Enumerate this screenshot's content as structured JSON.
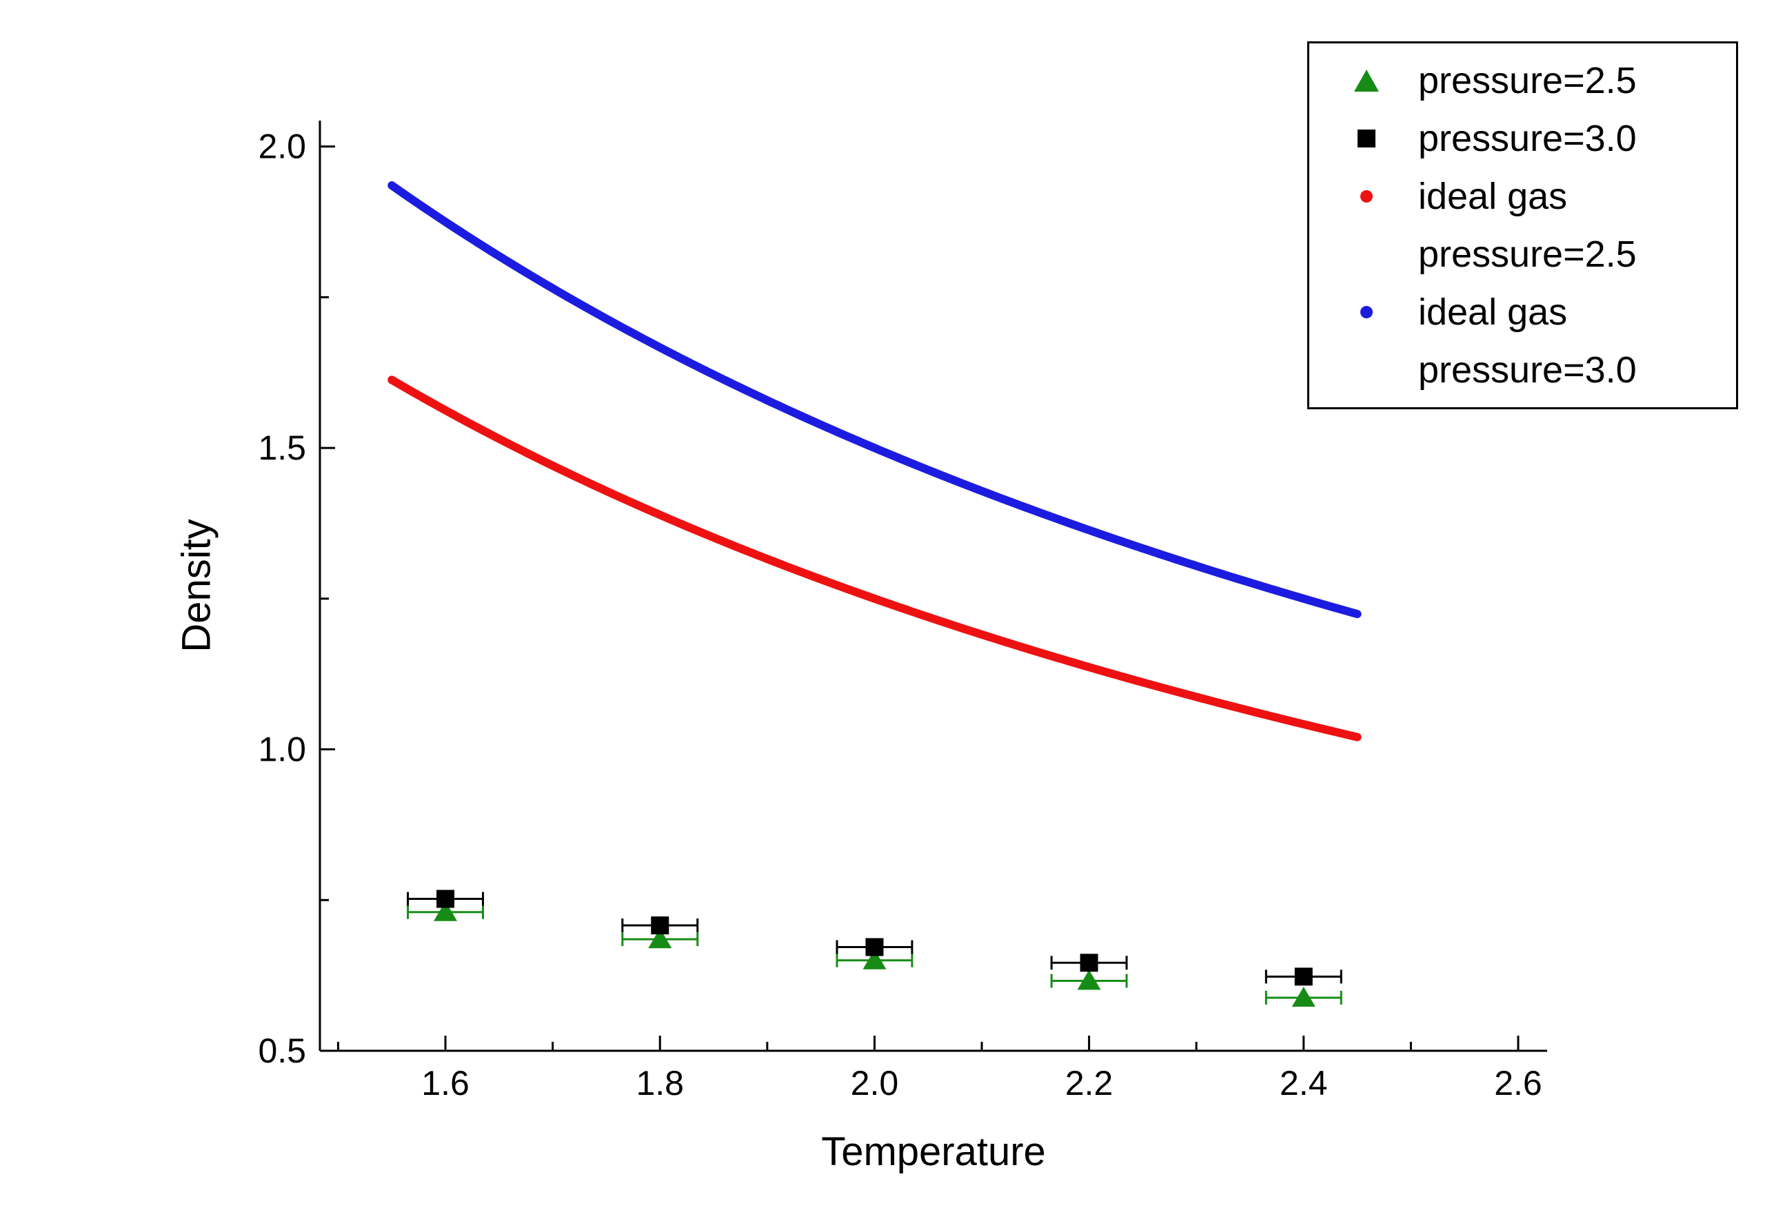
{
  "figure": {
    "background": "#ffffff"
  },
  "chart_data": {
    "type": "scatter",
    "title": "",
    "xlabel": "Temperature",
    "ylabel": "Density",
    "xlim": [
      1.483,
      2.627
    ],
    "ylim": [
      0.5,
      2.043
    ],
    "grid": false,
    "x_ticks": {
      "major": [
        1.6,
        1.8,
        2.0,
        2.2,
        2.4,
        2.6
      ],
      "minor": [
        1.5,
        1.7,
        1.9,
        2.1,
        2.3,
        2.5
      ],
      "labels": [
        "1.6",
        "1.8",
        "2.0",
        "2.2",
        "2.4",
        "2.6"
      ]
    },
    "y_ticks": {
      "major": [
        0.5,
        1.0,
        1.5,
        2.0
      ],
      "minor": [
        0.75,
        1.25,
        1.75
      ],
      "labels": [
        "0.5",
        "1.0",
        "1.5",
        "2.0"
      ]
    },
    "series": [
      {
        "id": "pressure-2.5",
        "name": "pressure=2.5",
        "kind": "scatter",
        "marker": "triangle",
        "color": "#168c16",
        "x": [
          1.6,
          1.8,
          2.0,
          2.2,
          2.4
        ],
        "y": [
          0.73,
          0.685,
          0.65,
          0.616,
          0.588
        ],
        "xerr": 0.035
      },
      {
        "id": "pressure-3.0",
        "name": "pressure=3.0",
        "kind": "scatter",
        "marker": "square",
        "color": "#000000",
        "x": [
          1.6,
          1.8,
          2.0,
          2.2,
          2.4
        ],
        "y": [
          0.752,
          0.708,
          0.672,
          0.646,
          0.623
        ],
        "xerr": 0.035
      },
      {
        "id": "ideal-gas-pressure-2.5",
        "name": "ideal gas pressure=2.5",
        "kind": "curve",
        "color": "#ee1111",
        "pressure": 2.5,
        "formula": "density = pressure / temperature",
        "x_start": 1.55,
        "x_end": 2.45,
        "y_start": 1.613,
        "y_end": 1.02
      },
      {
        "id": "ideal-gas-pressure-3.0",
        "name": "ideal gas pressure=3.0",
        "kind": "curve",
        "color": "#1c1ce0",
        "pressure": 3.0,
        "formula": "density = pressure / temperature",
        "x_start": 1.55,
        "x_end": 2.45,
        "y_start": 1.935,
        "y_end": 1.224
      }
    ],
    "legend": {
      "position": "top-right",
      "entries": [
        {
          "marker": "triangle",
          "color": "#168c16",
          "lines": [
            "pressure=2.5"
          ]
        },
        {
          "marker": "square",
          "color": "#000000",
          "lines": [
            "pressure=3.0"
          ]
        },
        {
          "marker": "dot",
          "color": "#ee1111",
          "lines": [
            "ideal gas",
            "pressure=2.5"
          ]
        },
        {
          "marker": "dot",
          "color": "#1c1ce0",
          "lines": [
            "ideal gas",
            "pressure=3.0"
          ]
        }
      ]
    }
  }
}
